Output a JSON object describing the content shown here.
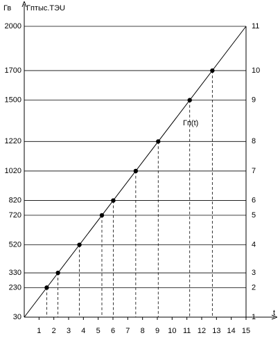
{
  "chart_data": {
    "type": "line",
    "title": "Гв",
    "y_label": "Гптыс.ТЭU",
    "x_label": "t",
    "annotation": "Гп(t)",
    "xlim": [
      0,
      15
    ],
    "xticks": [
      1,
      2,
      3,
      4,
      5,
      6,
      7,
      8,
      9,
      10,
      11,
      12,
      13,
      14,
      15
    ],
    "ylim": [
      30,
      2000
    ],
    "yticks": [
      30,
      230,
      330,
      520,
      720,
      820,
      1020,
      1220,
      1500,
      1700,
      2000
    ],
    "y2ticklabels": [
      "1",
      "2",
      "3",
      "4",
      "5",
      "6",
      "7",
      "8",
      "9",
      "10",
      "11"
    ],
    "grid": true,
    "series": [
      {
        "type": "line",
        "color": "#000000",
        "x": [
          0,
          15
        ],
        "values": [
          30,
          2000
        ]
      },
      {
        "type": "scatter",
        "color": "#000000",
        "x": [
          1.52,
          2.28,
          3.73,
          5.25,
          6.02,
          7.54,
          9.06,
          11.19,
          12.72
        ],
        "values": [
          230,
          330,
          520,
          720,
          820,
          1020,
          1220,
          1500,
          1700
        ]
      }
    ]
  }
}
